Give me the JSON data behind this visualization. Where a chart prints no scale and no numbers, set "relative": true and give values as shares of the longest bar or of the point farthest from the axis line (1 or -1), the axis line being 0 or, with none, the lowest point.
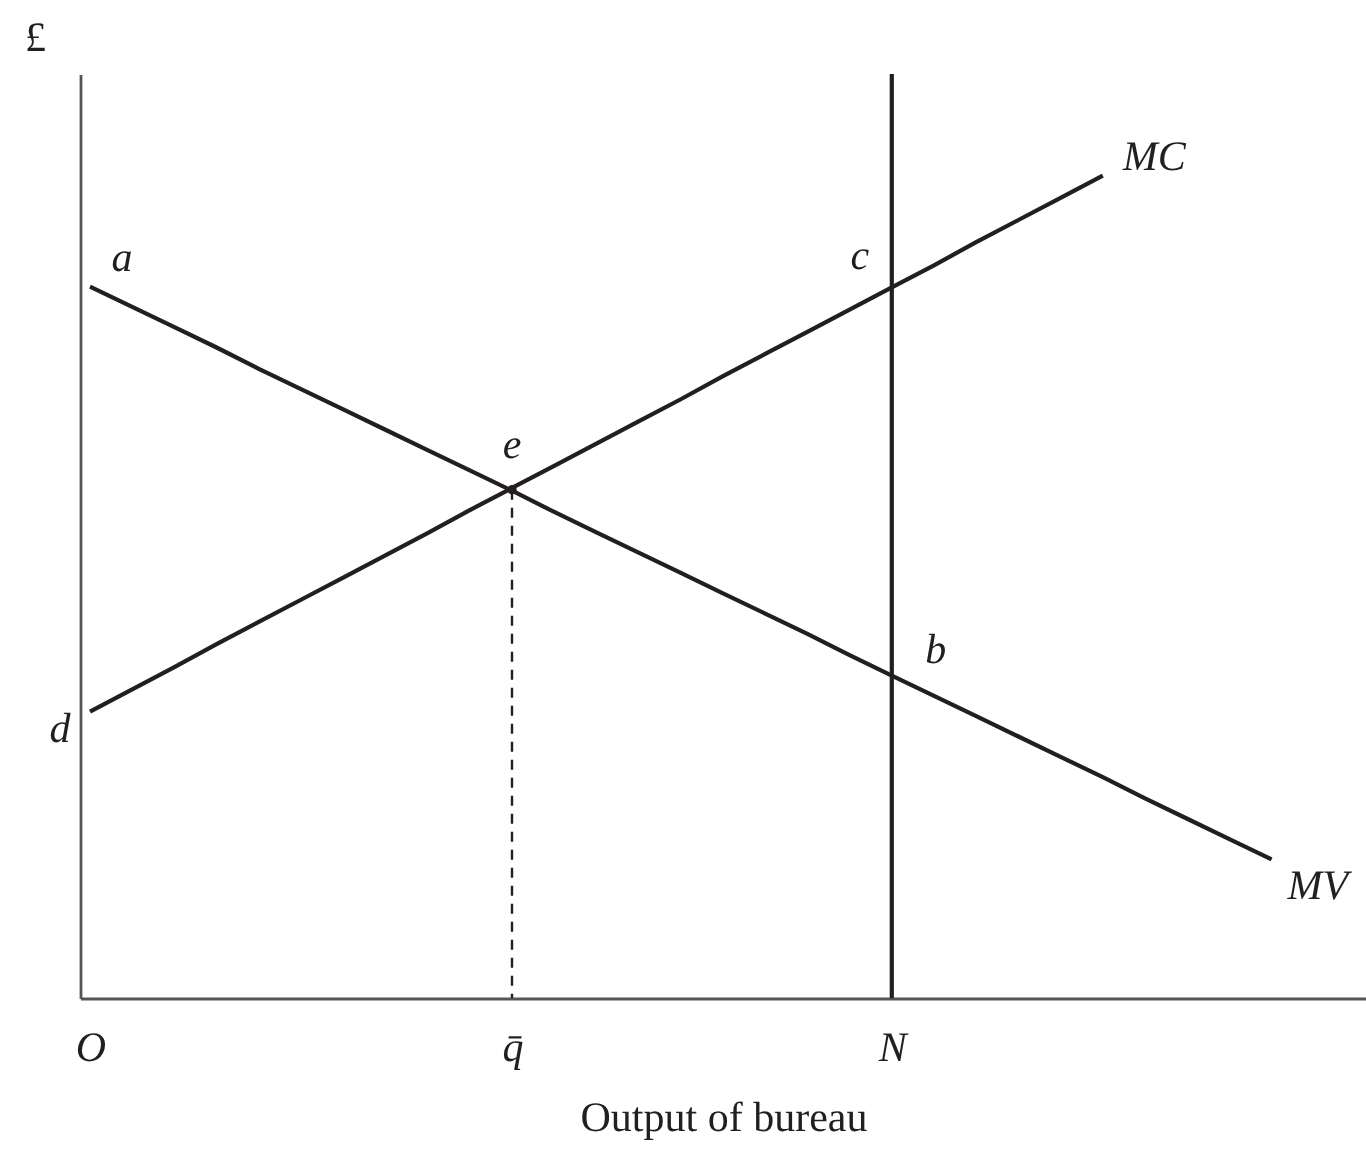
{
  "chart_data": {
    "type": "line",
    "relative": true,
    "xlabel": "Output of bureau",
    "ylabel": "£",
    "categories": [
      "O",
      null,
      null,
      null,
      null,
      null,
      null,
      null,
      null,
      null,
      "q̄",
      null,
      null,
      null,
      null,
      null,
      null,
      null,
      null,
      "N",
      null,
      null,
      null,
      null,
      null,
      null,
      null,
      null,
      null,
      null,
      null
    ],
    "series": [
      {
        "name": "MV",
        "color": "#231f20",
        "values": [
          0.77,
          0.748,
          0.726,
          0.704,
          0.681,
          0.659,
          0.637,
          0.615,
          0.593,
          0.571,
          0.549,
          0.526,
          0.504,
          0.482,
          0.46,
          0.438,
          0.416,
          0.394,
          0.371,
          0.349,
          0.327,
          0.305,
          0.283,
          0.261,
          0.239,
          0.216,
          0.194,
          0.172,
          0.15,
          null,
          null
        ]
      },
      {
        "name": "MC",
        "color": "#231f20",
        "values": [
          0.31,
          0.334,
          0.358,
          0.383,
          0.407,
          0.431,
          0.455,
          0.479,
          0.503,
          0.528,
          0.552,
          0.576,
          0.6,
          0.624,
          0.648,
          0.673,
          0.697,
          0.721,
          0.745,
          0.769,
          0.793,
          0.818,
          0.842,
          0.866,
          0.89,
          null,
          null,
          null,
          null,
          null,
          null
        ]
      },
      {
        "type": "bar",
        "color": "#231f20",
        "values": [
          null,
          null,
          null,
          null,
          null,
          null,
          null,
          null,
          null,
          null,
          null,
          null,
          null,
          null,
          null,
          null,
          null,
          null,
          null,
          1,
          null,
          null,
          null,
          null,
          null,
          null,
          null,
          null,
          null,
          null,
          null
        ]
      },
      {
        "type": "lollipop",
        "color": "#231f20",
        "marker": "circle",
        "line_style": "dashed",
        "values": [
          null,
          null,
          null,
          null,
          null,
          null,
          null,
          null,
          null,
          null,
          0.55,
          null,
          null,
          null,
          null,
          null,
          null,
          null,
          null,
          null,
          null,
          null,
          null,
          null,
          null,
          null,
          null,
          null,
          null,
          null,
          null
        ]
      }
    ],
    "annotations": [
      {
        "text": "a",
        "x": "O",
        "y": 0.77
      },
      {
        "text": "c",
        "x": "N",
        "y": 0.77
      },
      {
        "text": "e",
        "x": "q̄",
        "y": 0.55
      },
      {
        "text": "b",
        "x": "N",
        "y": 0.35
      },
      {
        "text": "d",
        "x": "O",
        "y": 0.31
      }
    ]
  }
}
